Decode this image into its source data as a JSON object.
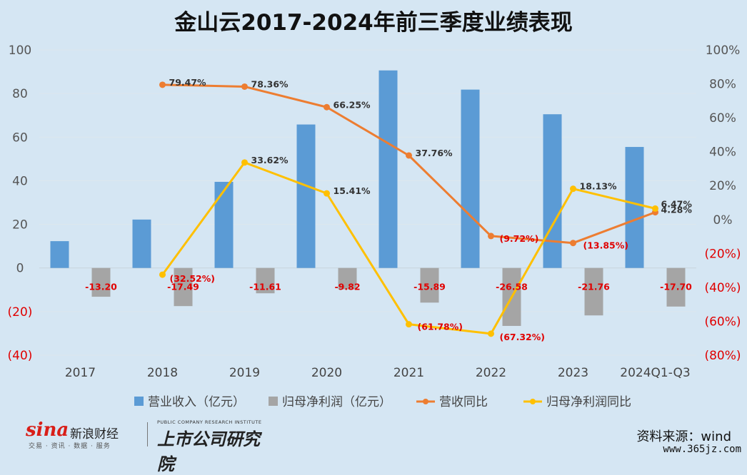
{
  "chart_data": {
    "type": "bar",
    "title": "金山云2017-2024年前三季度业绩表现",
    "categories": [
      "2017",
      "2018",
      "2019",
      "2020",
      "2021",
      "2022",
      "2023",
      "2024Q1-Q3"
    ],
    "left_axis": {
      "ylim": [
        -40,
        100
      ],
      "ticks": [
        100,
        80,
        60,
        40,
        20,
        0,
        -20,
        -40
      ],
      "tick_labels": [
        "100",
        "80",
        "60",
        "40",
        "20",
        "0",
        "(20)",
        "(40)"
      ]
    },
    "right_axis": {
      "ylim": [
        -80,
        100
      ],
      "ticks": [
        100,
        80,
        60,
        40,
        20,
        0,
        -20,
        -40,
        -60,
        -80
      ],
      "tick_labels": [
        "100%",
        "80%",
        "60%",
        "40%",
        "20%",
        "0%",
        "(20%)",
        "(40%)",
        "(60%)",
        "(80%)"
      ]
    },
    "grid": true,
    "legend_position": "bottom",
    "series": [
      {
        "name": "营业收入（亿元）",
        "type": "bar",
        "axis": "left",
        "color": "#5b9bd5",
        "values": [
          12.3,
          22.2,
          39.5,
          65.8,
          90.6,
          81.8,
          70.5,
          55.5
        ],
        "labels": [
          "",
          "",
          "",
          "",
          "",
          "",
          "",
          ""
        ]
      },
      {
        "name": "归母净利润（亿元）",
        "type": "bar",
        "axis": "left",
        "color": "#a5a5a5",
        "values": [
          -13.2,
          -17.49,
          -11.61,
          -9.82,
          -15.89,
          -26.58,
          -21.76,
          -17.7
        ],
        "labels": [
          "-13.20",
          "-17.49",
          "-11.61",
          "-9.82",
          "-15.89",
          "-26.58",
          "-21.76",
          "-17.70"
        ]
      },
      {
        "name": "营收同比",
        "type": "line",
        "axis": "right",
        "color": "#ed7d31",
        "values": [
          null,
          79.47,
          78.36,
          66.25,
          37.76,
          -9.72,
          -13.85,
          4.28
        ],
        "labels": [
          "",
          "79.47%",
          "78.36%",
          "66.25%",
          "37.76%",
          "(9.72%)",
          "(13.85%)",
          "4.28%"
        ]
      },
      {
        "name": "归母净利润同比",
        "type": "line",
        "axis": "right",
        "color": "#ffc000",
        "values": [
          null,
          -32.52,
          33.62,
          15.41,
          -61.78,
          -67.32,
          18.13,
          6.47
        ],
        "labels": [
          "",
          "(32.52%)",
          "33.62%",
          "15.41%",
          "(61.78%)",
          "(67.32%)",
          "18.13%",
          "6.47%"
        ]
      }
    ]
  },
  "footer": {
    "source": "资料来源：wind",
    "site": "www.365jz.com",
    "logo": {
      "brand": "sina",
      "brand_cn": "新浪财经",
      "brand_sub": "交易 · 资讯 · 数据 · 服务",
      "inst_en": "PUBLIC COMPANY RESEARCH INSTITUTE",
      "inst_cn": "上市公司研究院"
    }
  }
}
